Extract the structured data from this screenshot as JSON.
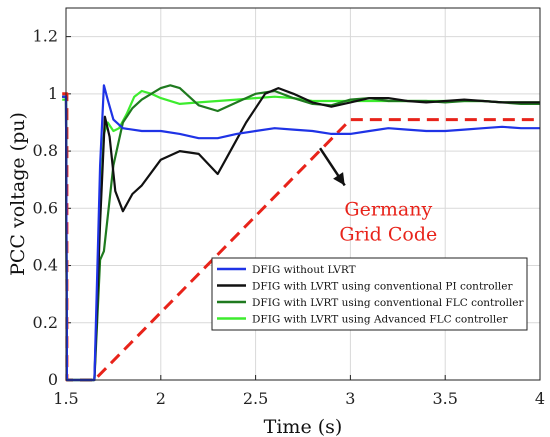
{
  "chart_data": {
    "type": "line",
    "title": "",
    "xlabel": "Time (s)",
    "ylabel": "PCC voltage (pu)",
    "xlim": [
      1.5,
      4
    ],
    "ylim": [
      0,
      1.3
    ],
    "grid": true,
    "legend_position": "lower-right",
    "xticks": [
      "1.5",
      "2",
      "2.5",
      "3",
      "3.5",
      "4"
    ],
    "yticks": [
      "0",
      "0.2",
      "0.4",
      "0.6",
      "0.8",
      "1",
      "1.2"
    ],
    "annotation": {
      "lines": [
        "Germany",
        "Grid Code"
      ],
      "color": "#e8231a"
    },
    "series": [
      {
        "name": "Germany Grid Code",
        "color": "#e8231a",
        "style": "dashed",
        "x": [
          1.48,
          1.505,
          1.505,
          1.65,
          3.0,
          4.0
        ],
        "y": [
          1.0,
          1.0,
          0.0,
          0.0,
          0.91,
          0.91
        ]
      },
      {
        "name": "DFIG without LVRT",
        "color": "#1f33e6",
        "style": "solid",
        "x": [
          1.48,
          1.5,
          1.505,
          1.65,
          1.68,
          1.7,
          1.72,
          1.75,
          1.8,
          1.9,
          2.0,
          2.1,
          2.2,
          2.3,
          2.4,
          2.5,
          2.6,
          2.7,
          2.8,
          2.9,
          3.0,
          3.1,
          3.2,
          3.3,
          3.4,
          3.5,
          3.6,
          3.7,
          3.8,
          3.9,
          4.0
        ],
        "y": [
          0.99,
          0.99,
          0.0,
          0.0,
          0.75,
          1.03,
          0.98,
          0.91,
          0.88,
          0.87,
          0.87,
          0.86,
          0.845,
          0.845,
          0.86,
          0.87,
          0.88,
          0.875,
          0.87,
          0.86,
          0.86,
          0.87,
          0.88,
          0.875,
          0.87,
          0.87,
          0.875,
          0.88,
          0.885,
          0.88,
          0.88
        ]
      },
      {
        "name": "DFIG with LVRT using conventional PI controller",
        "color": "#111111",
        "style": "solid",
        "x": [
          1.48,
          1.5,
          1.505,
          1.65,
          1.68,
          1.705,
          1.73,
          1.76,
          1.8,
          1.85,
          1.9,
          2.0,
          2.1,
          2.2,
          2.3,
          2.35,
          2.45,
          2.55,
          2.62,
          2.7,
          2.8,
          2.9,
          3.0,
          3.1,
          3.2,
          3.3,
          3.4,
          3.5,
          3.6,
          3.7,
          3.8,
          3.9,
          4.0
        ],
        "y": [
          0.99,
          0.99,
          0.0,
          0.0,
          0.55,
          0.92,
          0.85,
          0.66,
          0.59,
          0.65,
          0.68,
          0.77,
          0.8,
          0.79,
          0.72,
          0.78,
          0.9,
          1.0,
          1.02,
          1.0,
          0.97,
          0.955,
          0.97,
          0.985,
          0.985,
          0.975,
          0.97,
          0.975,
          0.98,
          0.975,
          0.97,
          0.97,
          0.97
        ]
      },
      {
        "name": "DFIG with LVRT using conventional FLC controller",
        "color": "#1f7a1f",
        "style": "solid",
        "x": [
          1.48,
          1.5,
          1.505,
          1.65,
          1.68,
          1.7,
          1.75,
          1.8,
          1.85,
          1.9,
          1.95,
          2.0,
          2.05,
          2.1,
          2.2,
          2.3,
          2.4,
          2.5,
          2.6,
          2.7,
          2.8,
          2.9,
          3.0,
          3.1,
          3.2,
          3.3,
          3.4,
          3.5,
          3.6,
          3.7,
          3.8,
          3.9,
          4.0
        ],
        "y": [
          0.99,
          0.99,
          0.0,
          0.0,
          0.42,
          0.45,
          0.75,
          0.9,
          0.95,
          0.98,
          1.0,
          1.02,
          1.03,
          1.02,
          0.96,
          0.94,
          0.97,
          1.0,
          1.01,
          0.985,
          0.965,
          0.96,
          0.98,
          0.985,
          0.975,
          0.975,
          0.975,
          0.97,
          0.975,
          0.975,
          0.97,
          0.965,
          0.965
        ]
      },
      {
        "name": "DFIG with LVRT using Advanced FLC controller",
        "color": "#3dec2e",
        "style": "solid",
        "x": [
          1.48,
          1.5,
          1.505,
          1.65,
          1.68,
          1.7,
          1.72,
          1.75,
          1.78,
          1.82,
          1.86,
          1.9,
          1.95,
          2.0,
          2.1,
          2.2,
          2.3,
          2.4,
          2.5,
          2.6,
          2.7,
          2.8,
          2.9,
          3.0,
          3.1,
          3.2,
          3.3,
          3.4,
          3.5,
          3.6,
          3.7,
          3.8,
          3.9,
          4.0
        ],
        "y": [
          0.98,
          0.98,
          0.0,
          0.0,
          0.6,
          0.86,
          0.9,
          0.87,
          0.88,
          0.93,
          0.99,
          1.01,
          1.0,
          0.985,
          0.965,
          0.97,
          0.975,
          0.98,
          0.985,
          0.99,
          0.985,
          0.975,
          0.975,
          0.975,
          0.975,
          0.975,
          0.975,
          0.975,
          0.975,
          0.975,
          0.975,
          0.97,
          0.97,
          0.97
        ]
      }
    ],
    "legend_entries": [
      {
        "label": "DFIG without LVRT",
        "color": "#1f33e6"
      },
      {
        "label": "DFIG with LVRT using conventional PI controller",
        "color": "#111111"
      },
      {
        "label": "DFIG with LVRT using conventional FLC controller",
        "color": "#1f7a1f"
      },
      {
        "label": "DFIG with LVRT using Advanced FLC controller",
        "color": "#3dec2e"
      }
    ]
  }
}
